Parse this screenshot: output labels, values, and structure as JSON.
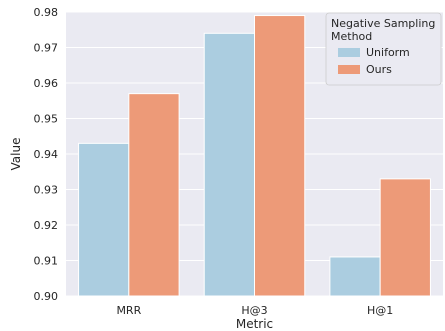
{
  "chart_data": {
    "type": "bar",
    "categories": [
      "MRR",
      "H@3",
      "H@1"
    ],
    "series": [
      {
        "name": "Uniform",
        "values": [
          0.943,
          0.974,
          0.911
        ],
        "color": "#abcde0"
      },
      {
        "name": "Ours",
        "values": [
          0.957,
          0.979,
          0.933
        ],
        "color": "#ed9a78"
      }
    ],
    "xlabel": "Metric",
    "ylabel": "Value",
    "ylim": [
      0.9,
      0.98
    ],
    "yticks": [
      "0.90",
      "0.91",
      "0.92",
      "0.93",
      "0.94",
      "0.95",
      "0.96",
      "0.97",
      "0.98"
    ],
    "grid": true,
    "legend": {
      "title_lines": [
        "Negative Sampling",
        "Method"
      ],
      "placement": "top-right"
    },
    "colors": {
      "background": "#eaeaf2",
      "grid": "#ffffff"
    }
  }
}
